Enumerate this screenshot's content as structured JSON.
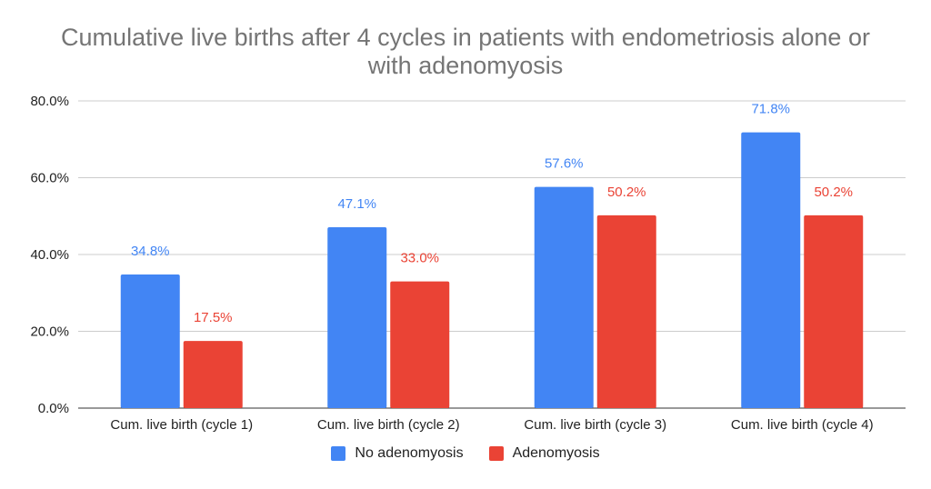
{
  "chart_data": {
    "type": "bar",
    "title_lines": [
      "Cumulative live births after 4 cycles in patients with endometriosis alone or",
      "with adenomyosis"
    ],
    "categories": [
      "Cum. live birth (cycle 1)",
      "Cum. live birth (cycle 2)",
      "Cum. live birth (cycle 3)",
      "Cum. live birth (cycle 4)"
    ],
    "series": [
      {
        "name": "No adenomyosis",
        "color": "#4285f4",
        "values": [
          34.8,
          47.1,
          57.6,
          71.8
        ],
        "labels": [
          "34.8%",
          "47.1%",
          "57.6%",
          "71.8%"
        ]
      },
      {
        "name": "Adenomyosis",
        "color": "#ea4335",
        "values": [
          17.5,
          33.0,
          50.2,
          50.2
        ],
        "labels": [
          "17.5%",
          "33.0%",
          "50.2%",
          "50.2%"
        ]
      }
    ],
    "y_ticks": [
      0,
      20,
      40,
      60,
      80
    ],
    "y_tick_labels": [
      "0.0%",
      "20.0%",
      "40.0%",
      "60.0%",
      "80.0%"
    ],
    "ylim": [
      0,
      80
    ],
    "grid": true,
    "legend_position": "bottom"
  }
}
